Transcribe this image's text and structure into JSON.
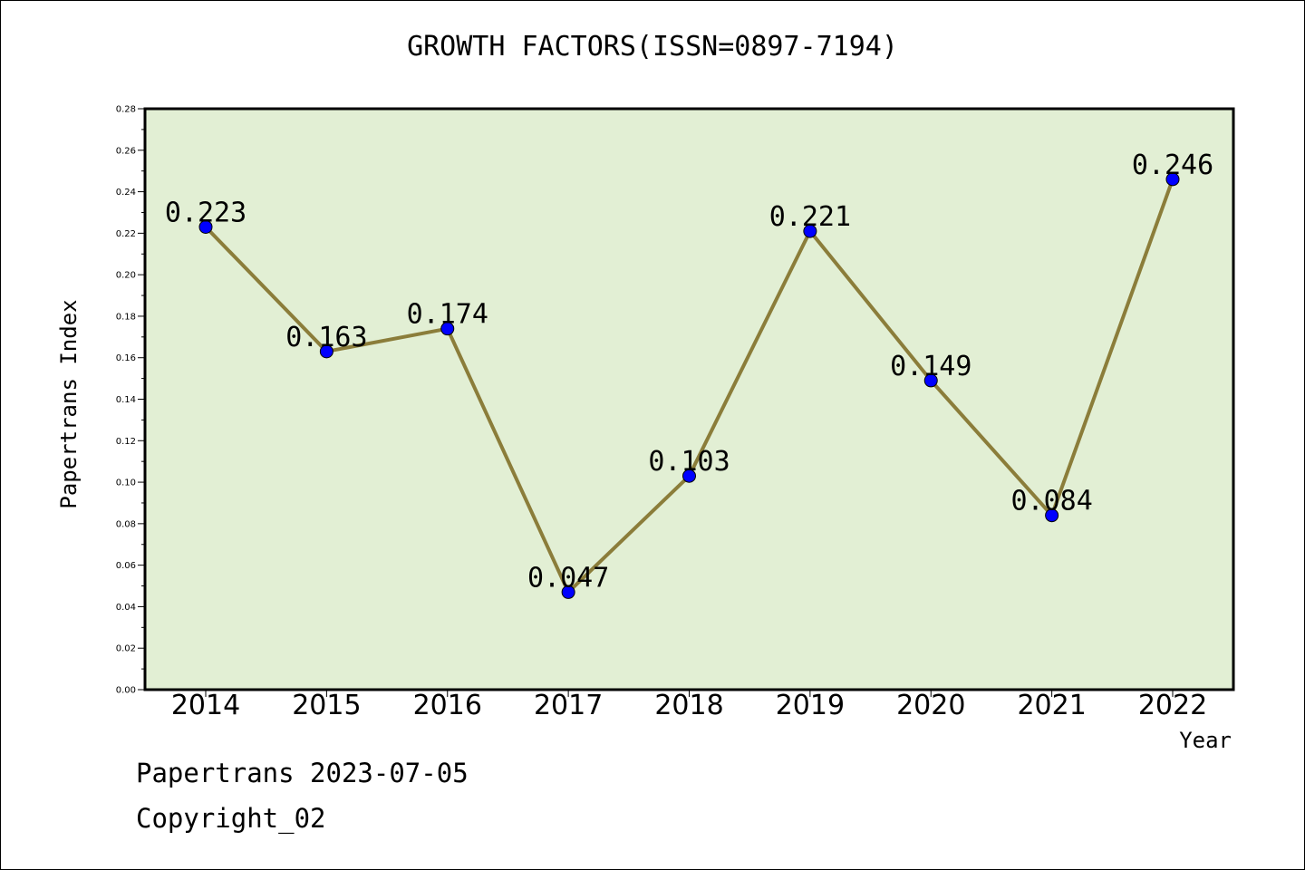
{
  "chart_data": {
    "type": "line",
    "title": "GROWTH FACTORS(ISSN=0897-7194)",
    "xlabel": "Year",
    "ylabel": "Papertrans Index",
    "categories": [
      "2014",
      "2015",
      "2016",
      "2017",
      "2018",
      "2019",
      "2020",
      "2021",
      "2022"
    ],
    "series": [
      {
        "values": [
          0.223,
          0.163,
          0.174,
          0.047,
          0.103,
          0.221,
          0.149,
          0.084,
          0.246
        ],
        "labels": [
          "0.223",
          "0.163",
          "0.174",
          "0.047",
          "0.103",
          "0.221",
          "0.149",
          "0.084",
          "0.246"
        ]
      }
    ],
    "ylim": [
      0,
      0.28
    ],
    "yticks": [
      "0.00",
      "0.02",
      "0.04",
      "0.06",
      "0.08",
      "0.10",
      "0.12",
      "0.14",
      "0.16",
      "0.18",
      "0.20",
      "0.22",
      "0.24",
      "0.26",
      "0.28"
    ],
    "grid": false,
    "colors": {
      "plot_background": "#e2efd4",
      "line": "#8b7d3a",
      "marker": "#0000ff"
    }
  },
  "footer": {
    "line1": "Papertrans 2023-07-05",
    "line2": "Copyright_02"
  }
}
